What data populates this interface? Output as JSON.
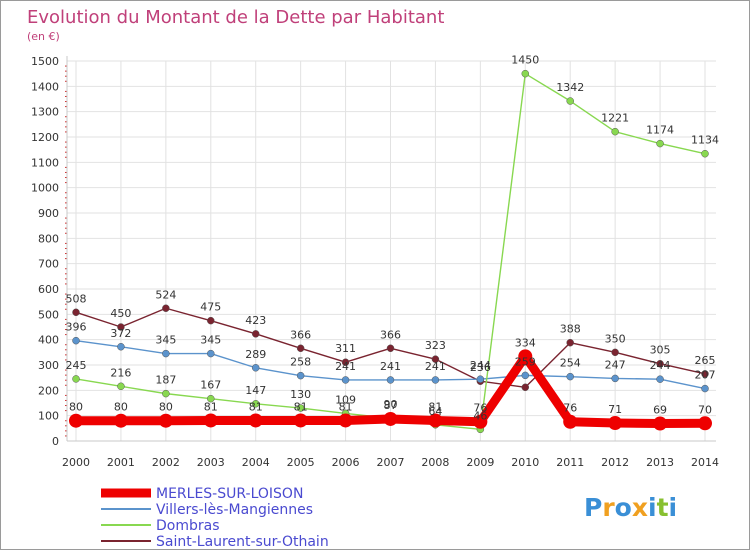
{
  "chart_data": {
    "type": "line",
    "title": "Evolution du Montant de la Dette par Habitant",
    "subtitle": "(en €)",
    "x": [
      "2000",
      "2001",
      "2002",
      "2003",
      "2004",
      "2005",
      "2006",
      "2007",
      "2008",
      "2009",
      "2010",
      "2011",
      "2012",
      "2013",
      "2014"
    ],
    "ylim": [
      0,
      1500
    ],
    "yticks": [
      0,
      100,
      200,
      300,
      400,
      500,
      600,
      700,
      800,
      900,
      1000,
      1100,
      1200,
      1300,
      1400,
      1500
    ],
    "grid": true,
    "legend_position": "bottom-left",
    "series": [
      {
        "name": "MERLES-SUR-LOISON",
        "color": "#ee0000",
        "values": [
          80,
          80,
          80,
          81,
          81,
          81,
          81,
          87,
          81,
          76,
          334,
          76,
          71,
          69,
          70
        ],
        "labels": [
          "80",
          "80",
          "80",
          "81",
          "81",
          "81",
          "81",
          "87",
          "81",
          "76",
          "334",
          "76",
          "71",
          "69",
          "70"
        ]
      },
      {
        "name": "Villers-lès-Mangiennes",
        "color": "#5b93cc",
        "values": [
          396,
          372,
          345,
          345,
          289,
          258,
          241,
          241,
          241,
          244,
          259,
          254,
          247,
          244,
          207
        ],
        "labels": [
          "396",
          "372",
          "345",
          "345",
          "289",
          "258",
          "241",
          "241",
          "241",
          "244",
          "259",
          "254",
          "247",
          "244",
          "207"
        ]
      },
      {
        "name": "Dombras",
        "color": "#88d850",
        "values": [
          245,
          216,
          187,
          167,
          147,
          130,
          109,
          90,
          64,
          46,
          1450,
          1342,
          1221,
          1174,
          1134
        ],
        "labels": [
          "245",
          "216",
          "187",
          "167",
          "147",
          "130",
          "109",
          "90",
          "64",
          "46",
          "1450",
          "1342",
          "1221",
          "1174",
          "1134"
        ]
      },
      {
        "name": "Saint-Laurent-sur-Othain",
        "color": "#7a2430",
        "values": [
          508,
          450,
          524,
          475,
          423,
          366,
          311,
          366,
          323,
          236,
          212,
          388,
          350,
          305,
          265
        ],
        "labels": [
          "508",
          "450",
          "524",
          "475",
          "423",
          "366",
          "311",
          "366",
          "323",
          "236",
          "",
          "388",
          "350",
          "305",
          "265"
        ]
      }
    ]
  },
  "logo": {
    "letters": [
      "P",
      "r",
      "o",
      "x",
      "i",
      "t",
      "i"
    ],
    "colors": [
      "#3a8fd6",
      "#f0a020",
      "#3a8fd6",
      "#f0a020",
      "#3a8fd6",
      "#88c030",
      "#3a8fd6"
    ]
  }
}
